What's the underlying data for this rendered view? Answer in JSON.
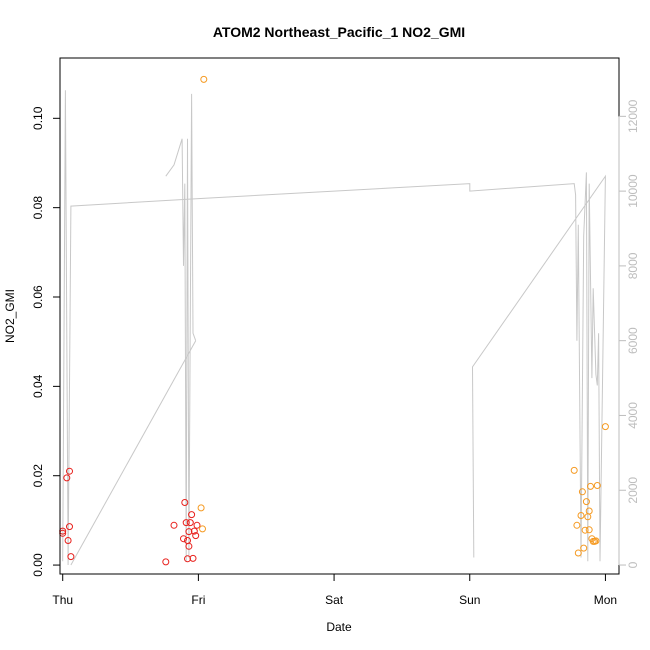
{
  "chart_data": {
    "type": "scatter",
    "title": "ATOM2 Northeast_Pacific_1 NO2_GMI",
    "xlabel": "Date",
    "ylabel": "NO2_GMI",
    "x_ticks": [
      "Thu",
      "Fri",
      "Sat",
      "Sun",
      "Mon"
    ],
    "y_ticks": [
      "0.00",
      "0.02",
      "0.04",
      "0.06",
      "0.08",
      "0.10"
    ],
    "y2_ticks": [
      "0",
      "2000",
      "4000",
      "6000",
      "8000",
      "10000",
      "12000"
    ],
    "xlim": [
      -0.02,
      4.1
    ],
    "ylim": [
      -0.002,
      0.1135
    ],
    "y2lim": [
      -240,
      13560
    ],
    "colors": {
      "series1": "#e8201c",
      "series2": "#f59a22",
      "altitude": "#c8c8c8",
      "frame": "#000000",
      "right_axis": "#bdbdbd"
    },
    "series": [
      {
        "axis": "left",
        "color_key": "series1",
        "points": [
          [
            0.0,
            0.0076
          ],
          [
            0.0,
            0.0071
          ],
          [
            0.03,
            0.0195
          ],
          [
            0.04,
            0.0055
          ],
          [
            0.05,
            0.021
          ],
          [
            0.05,
            0.0086
          ],
          [
            0.06,
            0.0019
          ],
          [
            0.76,
            0.0007
          ],
          [
            0.82,
            0.0089
          ],
          [
            0.89,
            0.0059
          ],
          [
            0.9,
            0.014
          ],
          [
            0.91,
            0.0095
          ],
          [
            0.92,
            0.0055
          ],
          [
            0.92,
            0.0014
          ],
          [
            0.93,
            0.0042
          ],
          [
            0.93,
            0.0075
          ],
          [
            0.94,
            0.0095
          ],
          [
            0.95,
            0.0113
          ],
          [
            0.96,
            0.0015
          ],
          [
            0.97,
            0.0076
          ],
          [
            0.98,
            0.0066
          ],
          [
            0.99,
            0.0089
          ]
        ]
      },
      {
        "axis": "left",
        "color_key": "series2",
        "points": [
          [
            1.04,
            0.1087
          ],
          [
            1.02,
            0.0128
          ],
          [
            1.03,
            0.0081
          ],
          [
            3.77,
            0.0212
          ],
          [
            3.79,
            0.0089
          ],
          [
            3.8,
            0.0027
          ],
          [
            3.82,
            0.0111
          ],
          [
            3.83,
            0.0164
          ],
          [
            3.84,
            0.0038
          ],
          [
            3.85,
            0.0078
          ],
          [
            3.86,
            0.0142
          ],
          [
            3.87,
            0.0108
          ],
          [
            3.88,
            0.0121
          ],
          [
            3.88,
            0.0079
          ],
          [
            3.89,
            0.0176
          ],
          [
            3.9,
            0.0059
          ],
          [
            3.91,
            0.0053
          ],
          [
            3.92,
            0.0053
          ],
          [
            3.93,
            0.0054
          ],
          [
            3.94,
            0.0178
          ],
          [
            4.0,
            0.031
          ]
        ]
      }
    ],
    "altitude_line": {
      "axis": "right",
      "points": [
        [
          0.0,
          100
        ],
        [
          0.02,
          12700
        ],
        [
          0.04,
          0
        ],
        [
          0.06,
          9600
        ],
        [
          1.0,
          9800
        ],
        [
          2.0,
          10000
        ],
        [
          3.0,
          10200
        ],
        [
          3.0,
          10000
        ],
        [
          3.77,
          10200
        ],
        [
          3.78,
          9900
        ],
        [
          3.79,
          6000
        ],
        [
          3.8,
          9100
        ],
        [
          3.82,
          200
        ],
        [
          3.84,
          8800
        ],
        [
          3.86,
          10500
        ],
        [
          3.87,
          100
        ],
        [
          3.88,
          10200
        ],
        [
          3.9,
          5000
        ],
        [
          3.91,
          7400
        ],
        [
          3.93,
          5100
        ],
        [
          3.94,
          4800
        ],
        [
          3.95,
          6200
        ],
        [
          3.96,
          100
        ],
        [
          4.0,
          10400
        ],
        [
          3.02,
          5300
        ],
        [
          3.03,
          200
        ],
        [
          3.02,
          5300
        ]
      ],
      "extra_segments": [
        [
          [
            0.76,
            10400
          ],
          [
            0.82,
            10700
          ],
          [
            0.88,
            11400
          ],
          [
            0.89,
            8000
          ],
          [
            0.9,
            10200
          ],
          [
            0.91,
            100
          ],
          [
            0.92,
            11400
          ],
          [
            0.93,
            200
          ],
          [
            0.95,
            12600
          ],
          [
            0.96,
            6200
          ],
          [
            0.98,
            6000
          ]
        ],
        [
          [
            0.06,
            0
          ],
          [
            0.98,
            6000
          ]
        ]
      ]
    }
  }
}
